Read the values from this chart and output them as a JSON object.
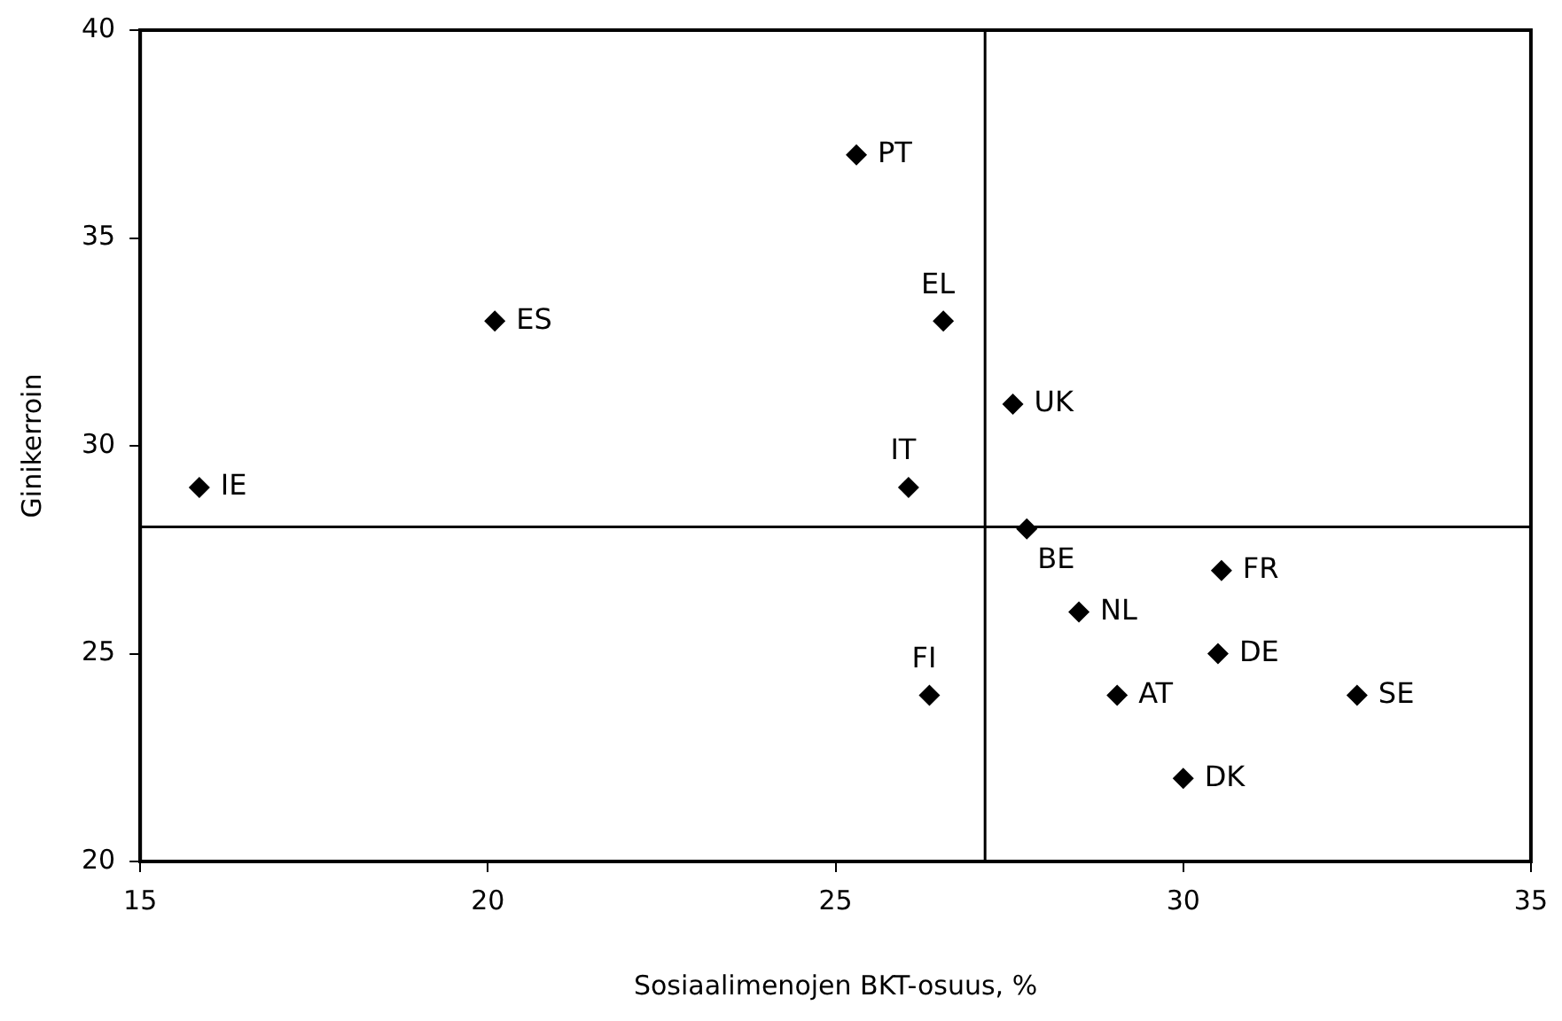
{
  "chart_data": {
    "type": "scatter",
    "xlabel": "Sosiaalimenojen BKT-osuus, %",
    "ylabel": "Ginikerroin",
    "series": [
      {
        "color": "#000000",
        "x": [
          25.3,
          20.1,
          26.55,
          27.55,
          26.05,
          15.85,
          27.75,
          30.55,
          28.5,
          30.5,
          26.35,
          29.05,
          32.5,
          30
        ],
        "values": [
          37,
          33,
          33,
          31,
          29,
          29,
          28,
          27,
          26,
          25,
          24,
          24,
          24,
          22
        ]
      }
    ],
    "annotations": [
      {
        "text": "PT",
        "x": 25.3,
        "y": 37
      },
      {
        "text": "ES",
        "x": 20.1,
        "y": 33
      },
      {
        "text": "EL",
        "x": 26.55,
        "y": 33
      },
      {
        "text": "UK",
        "x": 27.55,
        "y": 31
      },
      {
        "text": "IT",
        "x": 26.05,
        "y": 29
      },
      {
        "text": "IE",
        "x": 15.85,
        "y": 29
      },
      {
        "text": "BE",
        "x": 27.75,
        "y": 28
      },
      {
        "text": "FR",
        "x": 30.55,
        "y": 27
      },
      {
        "text": "NL",
        "x": 28.5,
        "y": 26
      },
      {
        "text": "DE",
        "x": 30.5,
        "y": 25
      },
      {
        "text": "FI",
        "x": 26.35,
        "y": 24
      },
      {
        "text": "AT",
        "x": 29.05,
        "y": 24
      },
      {
        "text": "SE",
        "x": 32.5,
        "y": 24
      },
      {
        "text": "DK",
        "x": 30,
        "y": 22
      }
    ],
    "ref_lines": [
      {
        "axis": "x",
        "value": 27.15,
        "color": "#000000"
      },
      {
        "axis": "y",
        "value": 28.05,
        "color": "#000000"
      }
    ],
    "xlim": [
      15,
      35
    ],
    "xticks": [
      15,
      20,
      25,
      30,
      35
    ],
    "ylim": [
      20,
      40
    ],
    "yticks": [
      20,
      25,
      30,
      35,
      40
    ],
    "grid": false,
    "legend": false,
    "marker": "diamond"
  }
}
